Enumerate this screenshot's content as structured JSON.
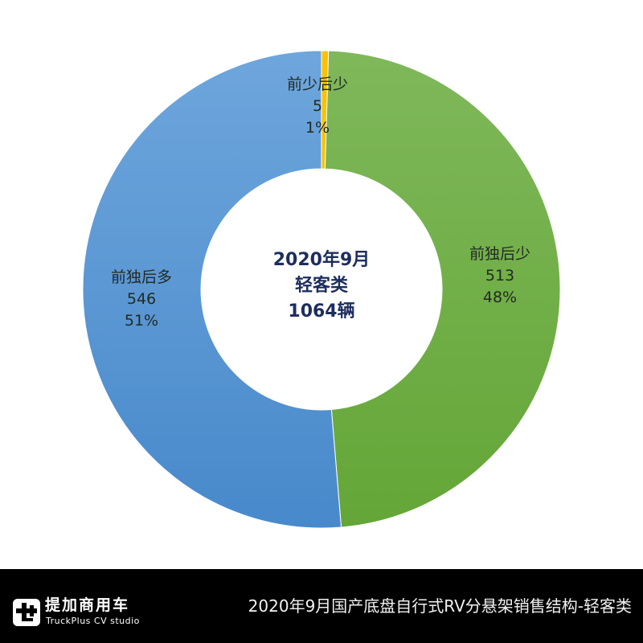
{
  "chart_data": {
    "type": "pie",
    "subtype": "donut",
    "title": "2020年9月国产底盘自行式RV分悬架销售结构-轻客类",
    "center_label": [
      "2020年9月",
      "轻客类",
      "1064辆"
    ],
    "total": 1064,
    "unit": "辆",
    "categories": [
      "前少后少",
      "前独后少",
      "前独后多"
    ],
    "values": [
      5,
      513,
      546
    ],
    "percentages": [
      "1%",
      "48%",
      "51%"
    ],
    "colors": [
      "#FFC000",
      "#70AD47",
      "#5B9BD5"
    ],
    "start_angle_deg": 0,
    "direction": "clockwise",
    "legend": "none",
    "data_labels": "category, value, percentage"
  },
  "labels": [
    {
      "name": "前少后少",
      "value": "5",
      "pct": "1%"
    },
    {
      "name": "前独后少",
      "value": "513",
      "pct": "48%"
    },
    {
      "name": "前独后多",
      "value": "546",
      "pct": "51%"
    }
  ],
  "center": {
    "line1": "2020年9月",
    "line2": "轻客类",
    "line3": "1064辆"
  },
  "footer": {
    "brand_cn": "提加商用车",
    "brand_en": "TruckPlus CV studio",
    "title": "2020年9月国产底盘自行式RV分悬架销售结构-轻客类"
  }
}
